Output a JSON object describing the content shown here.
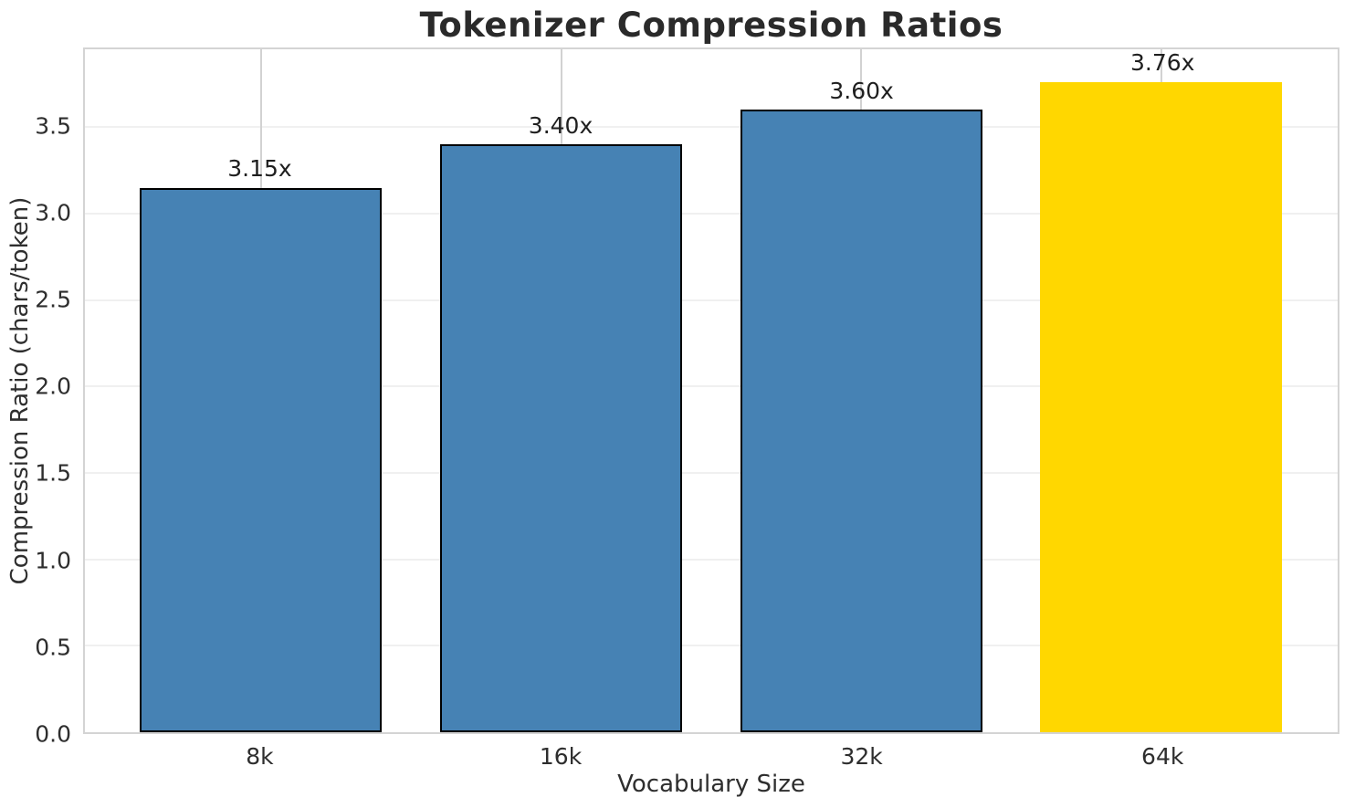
{
  "chart_data": {
    "type": "bar",
    "title": "Tokenizer Compression Ratios",
    "xlabel": "Vocabulary Size",
    "ylabel": "Compression Ratio (chars/token)",
    "categories": [
      "8k",
      "16k",
      "32k",
      "64k"
    ],
    "values": [
      3.15,
      3.4,
      3.6,
      3.76
    ],
    "bar_labels": [
      "3.15x",
      "3.40x",
      "3.60x",
      "3.76x"
    ],
    "series": [
      {
        "name": "Compression Ratio (chars/token)",
        "values": [
          3.15,
          3.4,
          3.6,
          3.76
        ]
      }
    ],
    "ylim": [
      0,
      3.95
    ],
    "yticks": [
      "0.0",
      "0.5",
      "1.0",
      "1.5",
      "2.0",
      "2.5",
      "3.0",
      "3.5"
    ],
    "grid": "on",
    "legend_position": "none",
    "bar_colors": [
      "#4682B4",
      "#4682B4",
      "#4682B4",
      "#FFD700"
    ],
    "bar_has_edge": [
      true,
      true,
      true,
      false
    ],
    "colors": {
      "bar_default": "#4682B4",
      "bar_highlight": "#FFD700",
      "bar_edge": "#000000",
      "grid_horizontal": "#f0f0f0",
      "grid_vertical": "#d2d2d2",
      "spine": "#d4d4d4",
      "title_text": "#2a2a2a",
      "label_text": "#2e2e2e"
    }
  }
}
